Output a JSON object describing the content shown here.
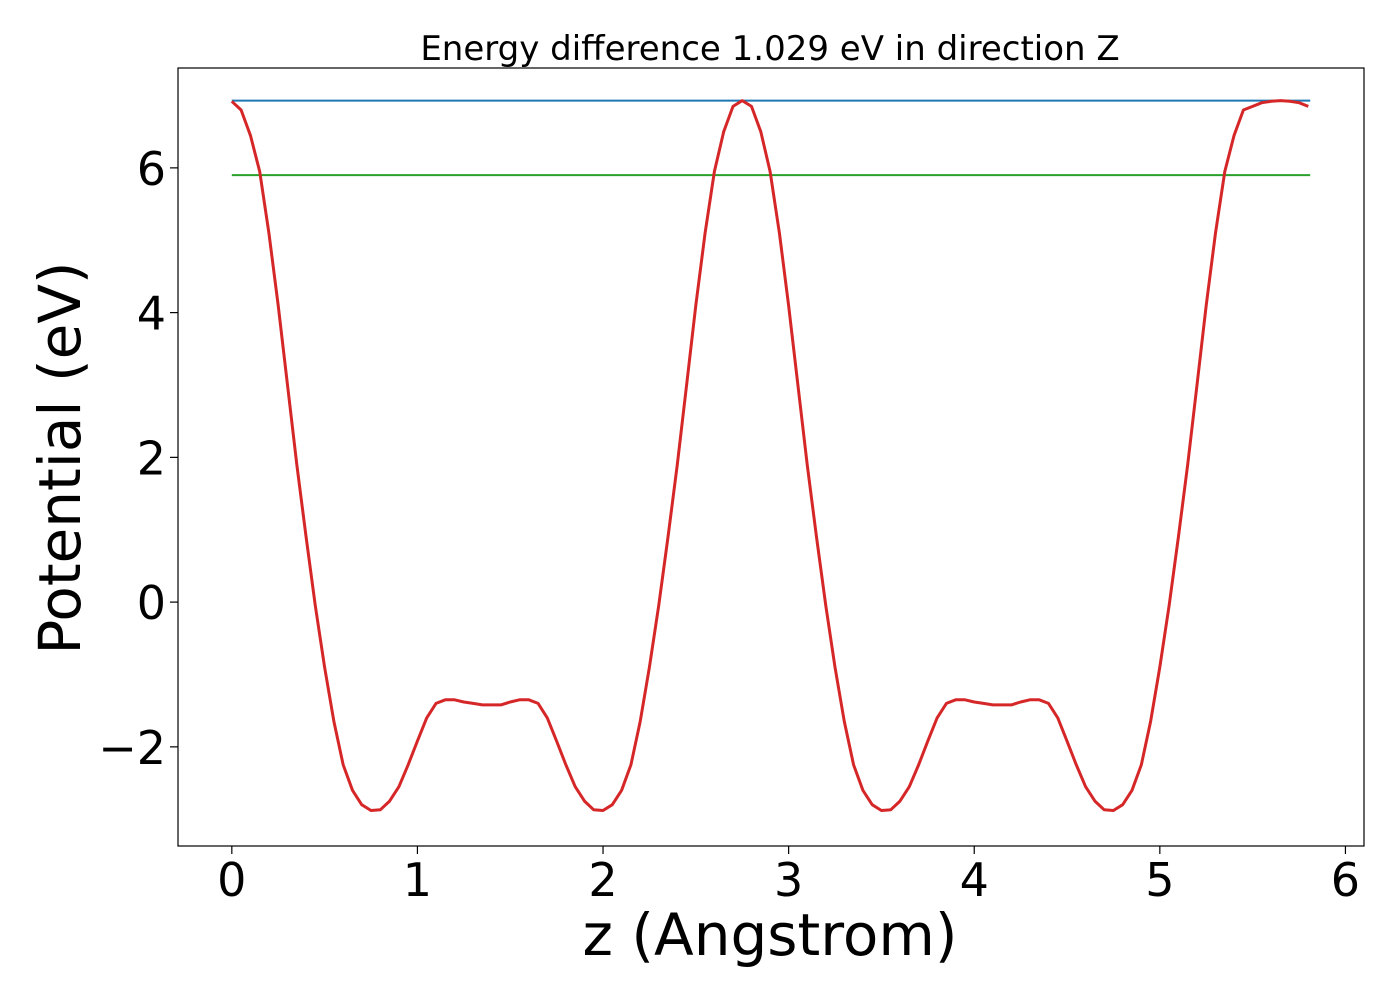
{
  "chart_data": {
    "type": "line",
    "title": "Energy difference 1.029 eV in direction Z",
    "xlabel": "z (Angstrom)",
    "ylabel": "Potential (eV)",
    "xlim": [
      -0.29,
      6.1
    ],
    "ylim": [
      -3.37,
      7.38
    ],
    "x_ticks": [
      0,
      1,
      2,
      3,
      4,
      5,
      6
    ],
    "x_tick_labels": [
      "0",
      "1",
      "2",
      "3",
      "4",
      "5",
      "6"
    ],
    "y_ticks": [
      -2,
      0,
      2,
      4,
      6
    ],
    "y_tick_labels": [
      "−2",
      "0",
      "2",
      "4",
      "6"
    ],
    "grid": false,
    "legend": "none",
    "series": [
      {
        "color": "#d62728",
        "x": [
          0.0,
          0.05,
          0.1,
          0.15,
          0.2,
          0.25,
          0.3,
          0.35,
          0.4,
          0.45,
          0.5,
          0.55,
          0.6,
          0.65,
          0.7,
          0.75,
          0.8,
          0.85,
          0.9,
          0.95,
          1.0,
          1.05,
          1.1,
          1.15,
          1.2,
          1.25,
          1.3,
          1.35,
          1.4,
          1.45,
          1.5,
          1.55,
          1.6,
          1.65,
          1.7,
          1.75,
          1.8,
          1.85,
          1.9,
          1.95,
          2.0,
          2.05,
          2.1,
          2.15,
          2.2,
          2.25,
          2.3,
          2.35,
          2.4,
          2.45,
          2.5,
          2.55,
          2.6,
          2.65,
          2.7,
          2.75,
          2.8,
          2.85,
          2.9,
          2.95,
          3.0,
          3.05,
          3.1,
          3.15,
          3.2,
          3.25,
          3.3,
          3.35,
          3.4,
          3.45,
          3.5,
          3.55,
          3.6,
          3.65,
          3.7,
          3.75,
          3.8,
          3.85,
          3.9,
          3.95,
          4.0,
          4.05,
          4.1,
          4.15,
          4.2,
          4.25,
          4.3,
          4.35,
          4.4,
          4.45,
          4.5,
          4.55,
          4.6,
          4.65,
          4.7,
          4.75,
          4.8,
          4.85,
          4.9,
          4.95,
          5.0,
          5.05,
          5.1,
          5.15,
          5.2,
          5.25,
          5.3,
          5.35,
          5.4,
          5.45,
          5.5,
          5.55,
          5.6,
          5.65,
          5.7,
          5.75,
          5.8
        ],
        "values": [
          6.92,
          6.8,
          6.45,
          5.95,
          5.1,
          4.1,
          3.0,
          1.9,
          0.9,
          -0.05,
          -0.9,
          -1.65,
          -2.25,
          -2.6,
          -2.8,
          -2.88,
          -2.87,
          -2.75,
          -2.55,
          -2.25,
          -1.92,
          -1.6,
          -1.4,
          -1.35,
          -1.35,
          -1.38,
          -1.4,
          -1.42,
          -1.42,
          -1.42,
          -1.38,
          -1.35,
          -1.35,
          -1.4,
          -1.6,
          -1.92,
          -2.25,
          -2.55,
          -2.75,
          -2.87,
          -2.88,
          -2.8,
          -2.6,
          -2.25,
          -1.65,
          -0.9,
          -0.05,
          0.9,
          1.9,
          3.0,
          4.1,
          5.1,
          5.95,
          6.5,
          6.85,
          6.93,
          6.85,
          6.5,
          5.95,
          5.1,
          4.1,
          3.0,
          1.9,
          0.9,
          -0.05,
          -0.9,
          -1.65,
          -2.25,
          -2.6,
          -2.8,
          -2.88,
          -2.87,
          -2.75,
          -2.55,
          -2.25,
          -1.92,
          -1.6,
          -1.4,
          -1.35,
          -1.35,
          -1.38,
          -1.4,
          -1.42,
          -1.42,
          -1.42,
          -1.38,
          -1.35,
          -1.35,
          -1.4,
          -1.6,
          -1.92,
          -2.25,
          -2.55,
          -2.75,
          -2.87,
          -2.88,
          -2.8,
          -2.6,
          -2.25,
          -1.65,
          -0.9,
          -0.05,
          0.9,
          1.9,
          3.0,
          4.1,
          5.1,
          5.95,
          6.45,
          6.8,
          6.85,
          6.9,
          6.92,
          6.93,
          6.92,
          6.9,
          6.85
        ]
      },
      {
        "color": "#1f77b4",
        "x": [
          0.0,
          5.81
        ],
        "values": [
          6.93,
          6.93
        ]
      },
      {
        "color": "#2ca02c",
        "x": [
          0.0,
          5.81
        ],
        "values": [
          5.9,
          5.9
        ]
      }
    ]
  }
}
